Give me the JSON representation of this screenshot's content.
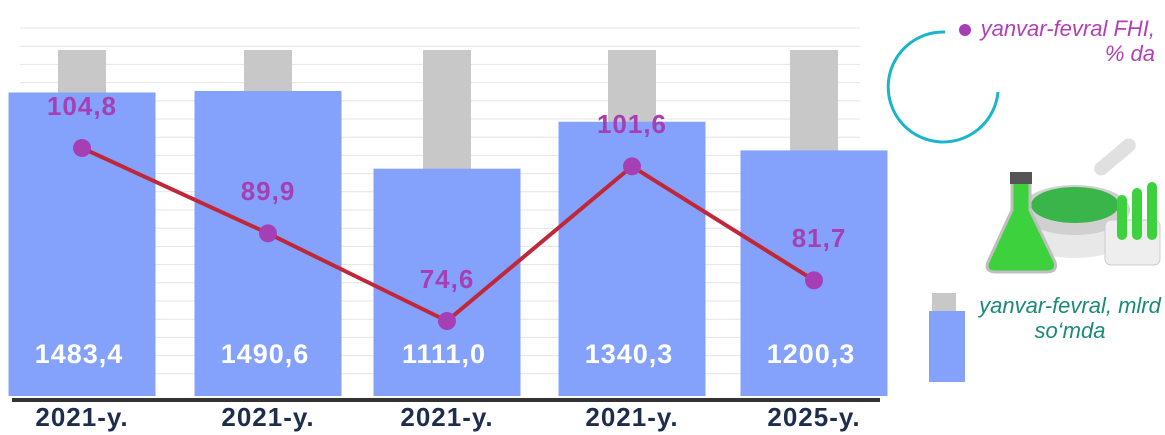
{
  "chart_data": {
    "type": "bar_line",
    "categories": [
      "2021-y.",
      "2021-y.",
      "2021-y.",
      "2021-y.",
      "2025-y."
    ],
    "series": [
      {
        "name": "yanvar-fevral, mlrd so‘mda",
        "type": "bar",
        "color": "#84a2fb",
        "values": [
          1483.4,
          1490.6,
          1111.0,
          1340.3,
          1200.3
        ],
        "value_labels": [
          "1483,4",
          "1490,6",
          "1111,0",
          "1340,3",
          "1200,3"
        ]
      },
      {
        "name": "yanvar-fevral FHI, % da",
        "type": "line",
        "color": "#a73fb4",
        "line_color": "#c0283a",
        "values": [
          104.8,
          89.9,
          74.6,
          101.6,
          81.7
        ],
        "value_labels": [
          "104,8",
          "89,9",
          "74,6",
          "101,6",
          "81,7"
        ]
      }
    ]
  }
}
